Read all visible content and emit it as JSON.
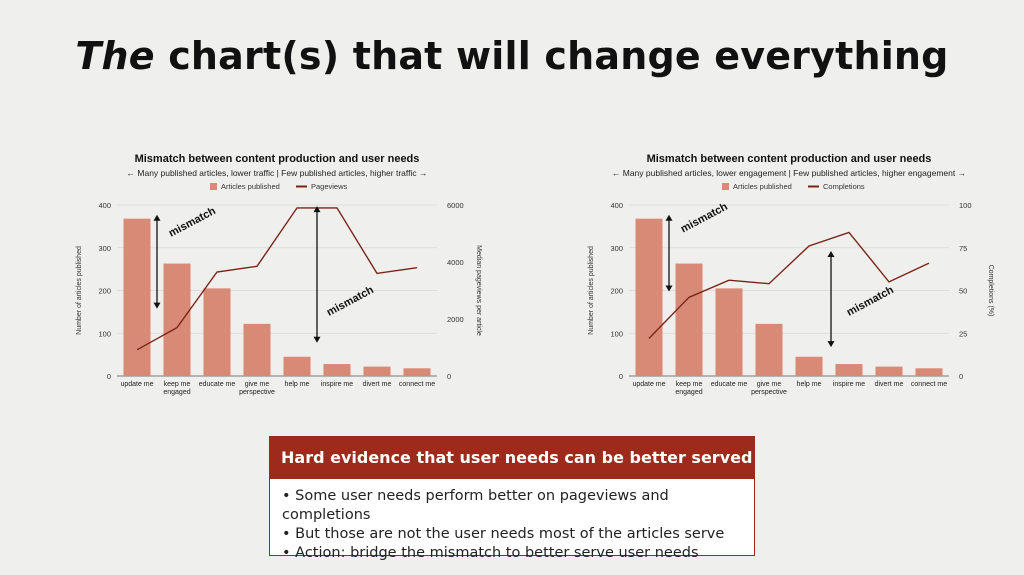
{
  "title": {
    "italic": "The",
    "rest": "chart(s) that will change everything"
  },
  "chart_data": [
    {
      "type": "bar",
      "title": "Mismatch between content production and user needs",
      "subtitle": "← Many published articles, lower traffic | Few published articles, higher traffic →",
      "legend": [
        "Articles published",
        "Pageviews"
      ],
      "legend_position": "top",
      "categories": [
        "update me",
        "keep me engaged",
        "educate me",
        "give me perspective",
        "help me",
        "inspire me",
        "divert me",
        "connect me"
      ],
      "category_lines": [
        [
          "update me"
        ],
        [
          "keep me",
          "engaged"
        ],
        [
          "educate me"
        ],
        [
          "give me",
          "perspective"
        ],
        [
          "help me"
        ],
        [
          "inspire me"
        ],
        [
          "divert me"
        ],
        [
          "connect me"
        ]
      ],
      "series": [
        {
          "name": "Articles published",
          "type": "bar",
          "axis": "left",
          "values": [
            368,
            263,
            205,
            122,
            45,
            28,
            22,
            18
          ]
        },
        {
          "name": "Pageviews",
          "type": "line",
          "axis": "right",
          "values": [
            920,
            1700,
            3650,
            3850,
            5900,
            5900,
            3600,
            3800
          ]
        }
      ],
      "ylabel": "Number of articles published",
      "y2label": "Median pageviews per article",
      "ylim": [
        0,
        400
      ],
      "yticks": [
        0,
        100,
        200,
        300,
        400
      ],
      "y2lim": [
        0,
        6000
      ],
      "y2ticks": [
        0,
        2000,
        4000,
        6000
      ],
      "grid": true,
      "annotations": [
        {
          "text": "mismatch",
          "arrow_x_category": 0.5,
          "arrow_y_from": 375,
          "arrow_y_to": 160,
          "label_x_category": 0.85,
          "label_y": 325
        },
        {
          "text": "mismatch",
          "arrow_x_category": 4.5,
          "arrow_y_from": 395,
          "arrow_y_to": 80,
          "label_x_category": 4.8,
          "label_y": 140
        }
      ],
      "colors": {
        "bar": "#d98a76",
        "line": "#7a2417"
      }
    },
    {
      "type": "bar",
      "title": "Mismatch between content production and user needs",
      "subtitle": "← Many published articles, lower engagement | Few published articles, higher engagement →",
      "legend": [
        "Articles published",
        "Completions"
      ],
      "legend_position": "top",
      "categories": [
        "update me",
        "keep me engaged",
        "educate me",
        "give me perspective",
        "help me",
        "inspire me",
        "divert me",
        "connect me"
      ],
      "category_lines": [
        [
          "update me"
        ],
        [
          "keep me",
          "engaged"
        ],
        [
          "educate me"
        ],
        [
          "give me",
          "perspective"
        ],
        [
          "help me"
        ],
        [
          "inspire me"
        ],
        [
          "divert me"
        ],
        [
          "connect me"
        ]
      ],
      "series": [
        {
          "name": "Articles published",
          "type": "bar",
          "axis": "left",
          "values": [
            368,
            263,
            205,
            122,
            45,
            28,
            22,
            18
          ]
        },
        {
          "name": "Completions",
          "type": "line",
          "axis": "right",
          "values": [
            22,
            46,
            56,
            54,
            76,
            84,
            55,
            66
          ]
        }
      ],
      "ylabel": "Number of articles published",
      "y2label": "Completions (%)",
      "ylim": [
        0,
        400
      ],
      "yticks": [
        0,
        100,
        200,
        300,
        400
      ],
      "y2lim": [
        0,
        100
      ],
      "y2ticks": [
        0,
        25,
        50,
        75,
        100
      ],
      "grid": true,
      "annotations": [
        {
          "text": "mismatch",
          "arrow_x_category": 0.5,
          "arrow_y_from": 375,
          "arrow_y_to": 200,
          "label_x_category": 0.85,
          "label_y": 335
        },
        {
          "text": "mismatch",
          "arrow_x_category": 4.55,
          "arrow_y_from": 290,
          "arrow_y_to": 70,
          "label_x_category": 5.0,
          "label_y": 140
        }
      ],
      "colors": {
        "bar": "#d98a76",
        "line": "#7a2417"
      }
    }
  ],
  "evidence": {
    "header": "Hard evidence that user needs can be better served",
    "bullets": [
      "• Some user needs perform better on pageviews and completions",
      "• But those are not the user needs most of the articles serve",
      "• Action: bridge the mismatch to better serve user needs"
    ]
  },
  "colors": {
    "accent": "#9e2a1b",
    "background": "#efefed"
  }
}
